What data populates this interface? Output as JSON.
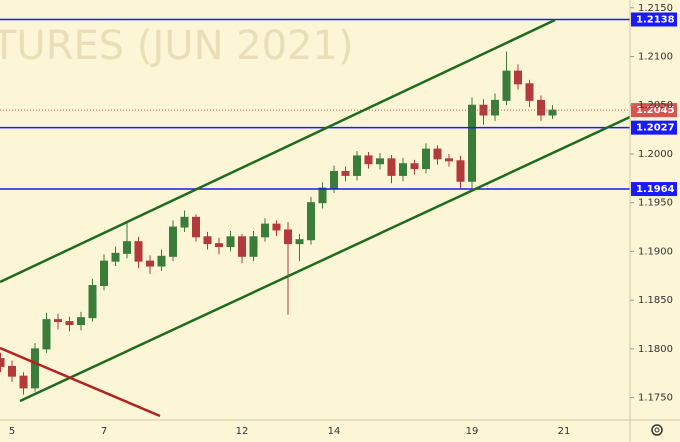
{
  "chart_data": {
    "type": "candlestick",
    "watermark": "TURES (JUN 2021)",
    "categories": [
      null,
      "5",
      null,
      null,
      null,
      null,
      null,
      null,
      null,
      "7",
      null,
      null,
      null,
      null,
      null,
      null,
      null,
      null,
      null,
      null,
      null,
      "12",
      null,
      null,
      null,
      null,
      null,
      null,
      null,
      "14",
      null,
      null,
      null,
      null,
      null,
      null,
      null,
      null,
      null,
      null,
      null,
      "19",
      null,
      null,
      null,
      null,
      null,
      null,
      null,
      "21"
    ],
    "open": [
      1.179,
      1.1782,
      1.1772,
      1.176,
      1.18,
      1.183,
      1.1828,
      1.1825,
      1.1832,
      1.1865,
      1.189,
      1.1898,
      1.191,
      1.189,
      1.1885,
      1.1895,
      1.1925,
      1.1935,
      1.1915,
      1.1908,
      1.1905,
      1.1915,
      1.1895,
      1.1915,
      1.1928,
      1.1922,
      1.1908,
      1.1912,
      1.195,
      1.1965,
      1.1982,
      1.1978,
      1.1998,
      1.199,
      1.1995,
      1.1978,
      1.199,
      1.1985,
      1.2005,
      1.1995,
      1.1993,
      1.1972,
      1.205,
      1.204,
      1.2055,
      1.2085,
      1.2072,
      1.2055,
      1.204,
      null
    ],
    "high": [
      1.1796,
      1.1788,
      1.1776,
      1.1806,
      1.1837,
      1.1836,
      1.1833,
      1.1838,
      1.1872,
      1.1897,
      1.1905,
      1.193,
      1.1915,
      1.1896,
      1.1902,
      1.1932,
      1.1942,
      1.1938,
      1.192,
      1.1914,
      1.1921,
      1.1918,
      1.1921,
      1.1934,
      1.1932,
      1.193,
      1.1918,
      1.1956,
      1.1971,
      1.1988,
      1.1987,
      1.2003,
      1.2002,
      1.2001,
      1.1999,
      1.1996,
      1.1994,
      1.2011,
      1.2009,
      1.2,
      1.1998,
      1.2058,
      1.2056,
      1.2062,
      1.2105,
      1.2092,
      1.2076,
      1.206,
      1.205,
      null
    ],
    "low": [
      1.1776,
      1.1766,
      1.1753,
      1.1756,
      1.1796,
      1.182,
      1.1818,
      1.1819,
      1.1828,
      1.186,
      1.1885,
      1.1893,
      1.1883,
      1.1877,
      1.188,
      1.189,
      1.192,
      1.191,
      1.1902,
      1.1897,
      1.19,
      1.1888,
      1.189,
      1.191,
      1.1916,
      1.1835,
      1.189,
      1.1907,
      1.1944,
      1.196,
      1.1972,
      1.1973,
      1.1985,
      1.1984,
      1.197,
      1.1972,
      1.1979,
      1.198,
      1.1989,
      1.1987,
      1.1965,
      1.1965,
      1.203,
      1.2034,
      1.205,
      1.2066,
      1.2048,
      1.2034,
      1.2036,
      null
    ],
    "close": [
      1.1782,
      1.1772,
      1.176,
      1.18,
      1.183,
      1.1828,
      1.1825,
      1.1832,
      1.1865,
      1.189,
      1.1898,
      1.191,
      1.189,
      1.1885,
      1.1895,
      1.1925,
      1.1935,
      1.1915,
      1.1908,
      1.1905,
      1.1915,
      1.1895,
      1.1915,
      1.1928,
      1.1922,
      1.1908,
      1.1912,
      1.195,
      1.1965,
      1.1982,
      1.1978,
      1.1998,
      1.199,
      1.1995,
      1.1978,
      1.199,
      1.1985,
      1.2005,
      1.1995,
      1.1993,
      1.1972,
      1.205,
      1.204,
      1.2055,
      1.2085,
      1.2072,
      1.2055,
      1.204,
      1.2045,
      null
    ],
    "up_color": "#3a7d3a",
    "down_color": "#b23a3a",
    "levels": [
      1.2138,
      1.2027,
      1.1964
    ],
    "level_color": "#1a1aff",
    "last_price": 1.2045,
    "last_price_color": "#d9534f",
    "ylim": [
      1.1727,
      1.2158
    ],
    "yticks": [
      {
        "value": 1.215,
        "label": "1.2150"
      },
      {
        "value": 1.21,
        "label": "1.2100"
      },
      {
        "value": 1.205,
        "label": "1.2050"
      },
      {
        "value": 1.2,
        "label": "1.2000"
      },
      {
        "value": 1.195,
        "label": "1.1950"
      },
      {
        "value": 1.19,
        "label": "1.1900"
      },
      {
        "value": 1.185,
        "label": "1.1850"
      },
      {
        "value": 1.18,
        "label": "1.1800"
      },
      {
        "value": 1.175,
        "label": "1.1750"
      }
    ]
  }
}
